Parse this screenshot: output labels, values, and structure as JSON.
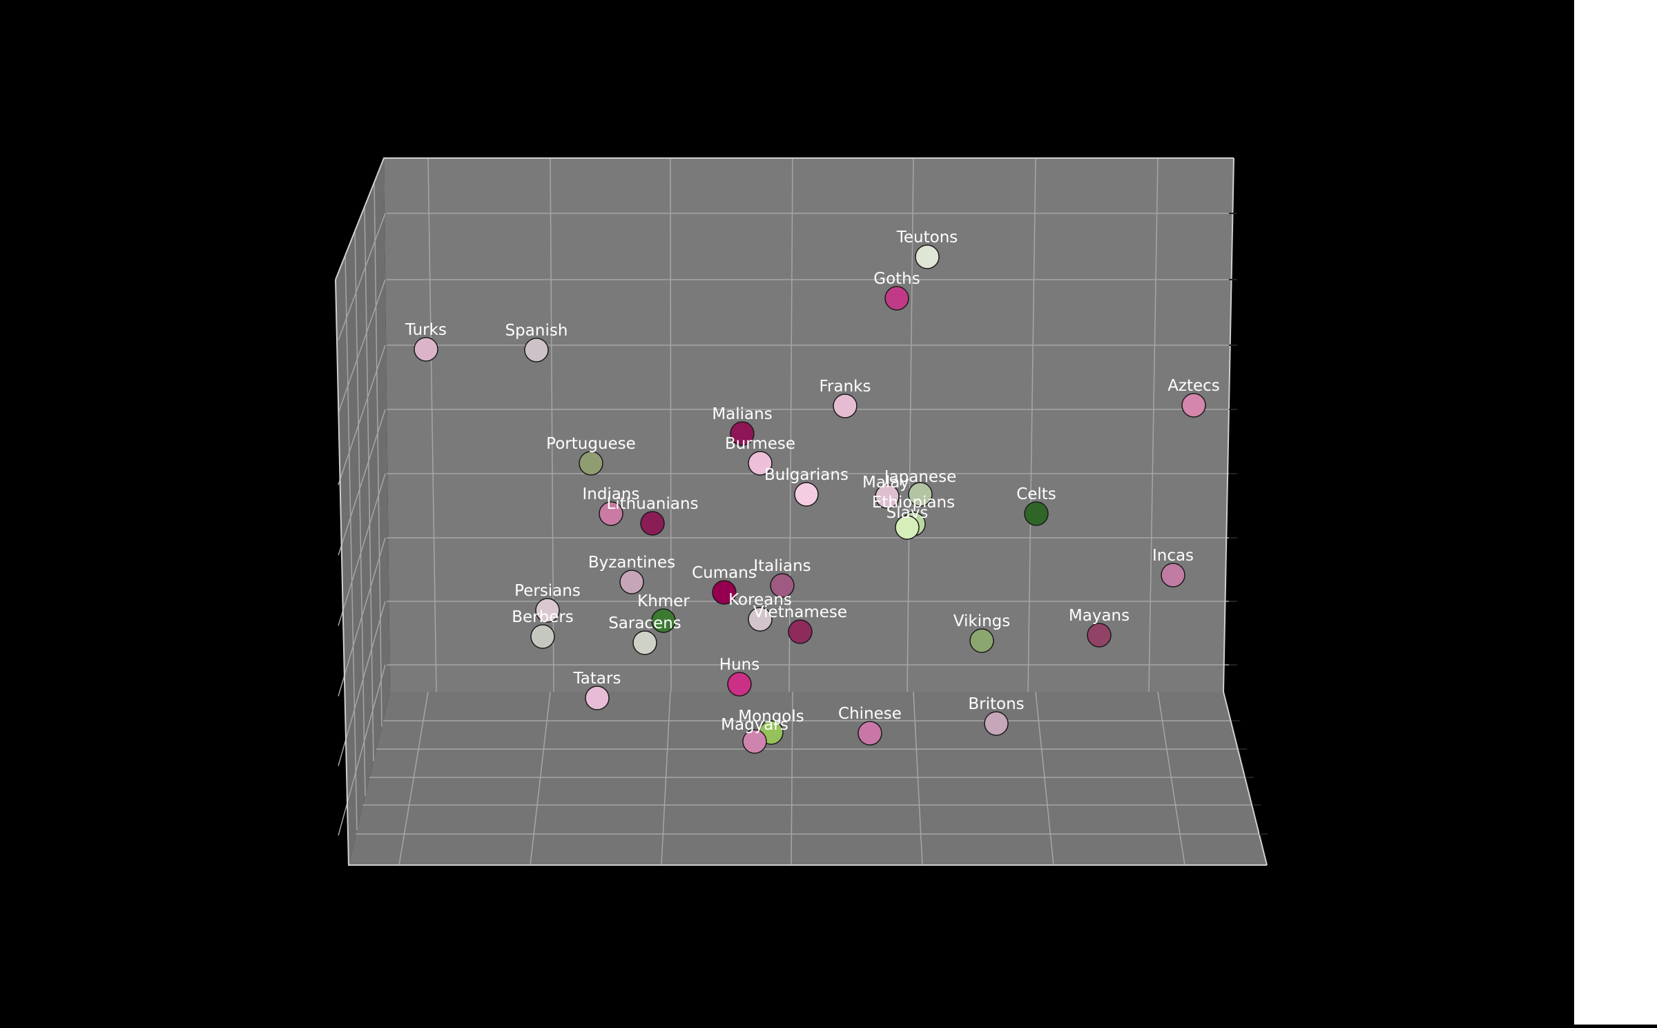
{
  "chart_data": {
    "type": "scatter",
    "projection": "3d",
    "title": "",
    "background_color": "#000000",
    "pane_color": "#7a7a7a",
    "grid": true,
    "label_color": "#ffffff",
    "points": [
      {
        "label": "Teutons",
        "color": "#dfe6d6"
      },
      {
        "label": "Goths",
        "color": "#c13a87"
      },
      {
        "label": "Turks",
        "color": "#dcb4c9"
      },
      {
        "label": "Spanish",
        "color": "#cdc2c8"
      },
      {
        "label": "Aztecs",
        "color": "#d486ac"
      },
      {
        "label": "Franks",
        "color": "#e6bcd3"
      },
      {
        "label": "Malians",
        "color": "#8e1656"
      },
      {
        "label": "Portuguese",
        "color": "#8f9d71"
      },
      {
        "label": "Burmese",
        "color": "#edbfd9"
      },
      {
        "label": "Bulgarians",
        "color": "#f4cde3"
      },
      {
        "label": "Malay",
        "color": "#ddbfd0"
      },
      {
        "label": "Japanese",
        "color": "#b3c4a2"
      },
      {
        "label": "Indians",
        "color": "#c97ba4"
      },
      {
        "label": "Lithuanians",
        "color": "#8a1d56"
      },
      {
        "label": "Ethiopians",
        "color": "#bcd8a0"
      },
      {
        "label": "Slavs",
        "color": "#d6eeba"
      },
      {
        "label": "Celts",
        "color": "#2f6628"
      },
      {
        "label": "Incas",
        "color": "#c07ca2"
      },
      {
        "label": "Byzantines",
        "color": "#c6a5b8"
      },
      {
        "label": "Cumans",
        "color": "#94004f"
      },
      {
        "label": "Italians",
        "color": "#9e5a80"
      },
      {
        "label": "Persians",
        "color": "#dac8d1"
      },
      {
        "label": "Khmer",
        "color": "#3c7a31"
      },
      {
        "label": "Koreans",
        "color": "#d4c4cc"
      },
      {
        "label": "Vietnamese",
        "color": "#8e2a5c"
      },
      {
        "label": "Berbers",
        "color": "#c5c8bf"
      },
      {
        "label": "Saracens",
        "color": "#cfd2c6"
      },
      {
        "label": "Vikings",
        "color": "#8ca66f"
      },
      {
        "label": "Mayans",
        "color": "#924266"
      },
      {
        "label": "Tatars",
        "color": "#e8bcd6"
      },
      {
        "label": "Huns",
        "color": "#cc2f86"
      },
      {
        "label": "Mongols",
        "color": "#95c25a"
      },
      {
        "label": "Magyars",
        "color": "#cf84ae"
      },
      {
        "label": "Chinese",
        "color": "#c977a6"
      },
      {
        "label": "Britons",
        "color": "#c6a6b9"
      }
    ]
  }
}
